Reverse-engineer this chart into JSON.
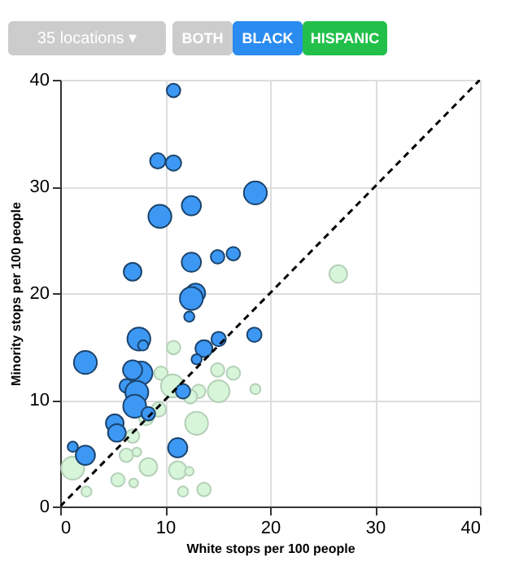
{
  "chart_data": {
    "type": "bubble",
    "xlabel": "White stops per 100 people",
    "ylabel": "Minority stops per 100 people",
    "annotations": [
      "35 locations ▾",
      "BOTH",
      "BLACK",
      "HISPANIC"
    ],
    "xlim": [
      0,
      40
    ],
    "ylim": [
      0,
      40
    ],
    "xticks": [
      0,
      10,
      20,
      30,
      40
    ],
    "yticks": [
      0,
      10,
      20,
      30,
      40
    ],
    "grid": true,
    "legend": false,
    "relative": false,
    "series": [
      {
        "marker": "circle",
        "color": "#d6f5d9",
        "x": [
          10.8,
          9.6,
          10.7,
          13.2,
          15.1,
          15.0,
          16.5,
          18.6,
          12.4,
          9.4,
          8.2,
          13.0,
          6.9,
          6.3,
          7.3,
          8.4,
          1.2,
          11.2,
          12.3,
          5.5,
          7.0,
          13.7,
          11.7,
          2.5,
          26.5
        ],
        "values": [
          14.9,
          12.5,
          11.3,
          10.8,
          10.8,
          12.8,
          12.5,
          11.0,
          10.3,
          9.1,
          8.3,
          7.8,
          6.6,
          4.8,
          5.1,
          3.7,
          3.6,
          3.4,
          3.3,
          2.5,
          2.2,
          1.6,
          1.4,
          1.4,
          21.8
        ],
        "sizes": [
          0.35,
          0.35,
          1,
          0.35,
          0.9,
          0.35,
          0.35,
          0.2,
          0.35,
          0.4,
          0.4,
          1,
          0.35,
          0.35,
          0.15,
          0.6,
          1,
          0.6,
          0.15,
          0.35,
          0.15,
          0.35,
          0.2,
          0.2,
          0.6
        ]
      },
      {
        "marker": "circle",
        "color": "#3d98f4",
        "x": [
          10.8,
          9.3,
          10.8,
          18.6,
          9.5,
          12.5,
          12.5,
          15.0,
          16.5,
          6.9,
          12.9,
          12.5,
          12.3,
          18.5,
          15.1,
          13.7,
          13.0,
          7.5,
          7.9,
          2.4,
          7.7,
          6.9,
          6.3,
          7.3,
          7.1,
          8.4,
          11.7,
          5.2,
          5.4,
          1.2,
          2.4,
          11.2
        ],
        "values": [
          39.0,
          32.4,
          32.2,
          29.4,
          27.2,
          28.2,
          22.9,
          23.4,
          23.7,
          22.0,
          20.0,
          19.5,
          17.8,
          16.1,
          15.7,
          14.8,
          13.8,
          15.7,
          15.1,
          13.5,
          12.5,
          12.8,
          11.3,
          10.7,
          9.4,
          8.7,
          10.8,
          7.8,
          6.9,
          5.6,
          4.8,
          5.5
        ],
        "sizes": [
          0.35,
          0.45,
          0.45,
          1,
          1,
          0.7,
          0.7,
          0.35,
          0.35,
          0.6,
          0.7,
          1,
          0.2,
          0.4,
          0.4,
          0.55,
          0.2,
          1,
          0.2,
          1,
          1,
          0.7,
          0.35,
          1,
          1,
          0.35,
          0.4,
          0.6,
          0.6,
          0.2,
          0.7,
          0.7
        ]
      },
      {
        "type": "line",
        "marker": "none",
        "color": "#000000",
        "line_style": "dashed",
        "x": [
          0,
          40
        ],
        "values": [
          0,
          40
        ]
      }
    ]
  }
}
